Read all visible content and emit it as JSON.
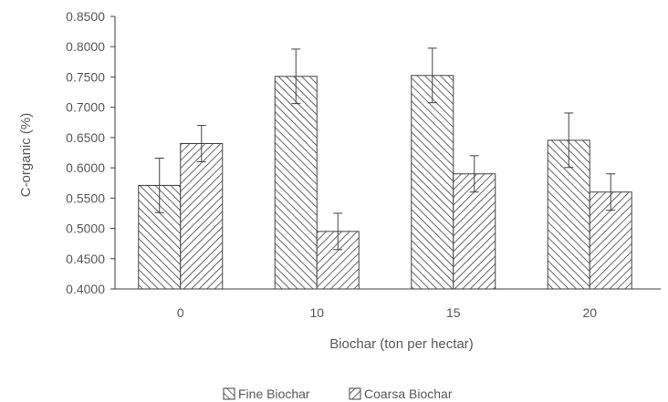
{
  "chart_data": {
    "type": "bar",
    "title": "",
    "xlabel": "Biochar (ton per hectar)",
    "ylabel": "C-organic  (%)",
    "categories": [
      "0",
      "10",
      "15",
      "20"
    ],
    "series": [
      {
        "name": "Fine Biochar",
        "pattern": "hatch-backslash",
        "values": [
          0.571,
          0.751,
          0.7525,
          0.6455
        ],
        "errors": [
          0.045,
          0.045,
          0.045,
          0.045
        ]
      },
      {
        "name": "Coarsa Biochar",
        "pattern": "hatch-slash",
        "values": [
          0.64,
          0.495,
          0.59,
          0.56
        ],
        "errors": [
          0.03,
          0.03,
          0.03,
          0.03
        ]
      }
    ],
    "ylim": [
      0.4,
      0.85
    ],
    "yticks": [
      "0.4000",
      "0.4500",
      "0.5000",
      "0.5500",
      "0.6000",
      "0.6500",
      "0.7000",
      "0.7500",
      "0.8000",
      "0.8500"
    ],
    "grid": false,
    "legend_position": "bottom",
    "colors": {
      "bar_fill": "#ffffff",
      "bar_stroke": "#404040",
      "axis": "#404040",
      "text": "#595959"
    }
  }
}
